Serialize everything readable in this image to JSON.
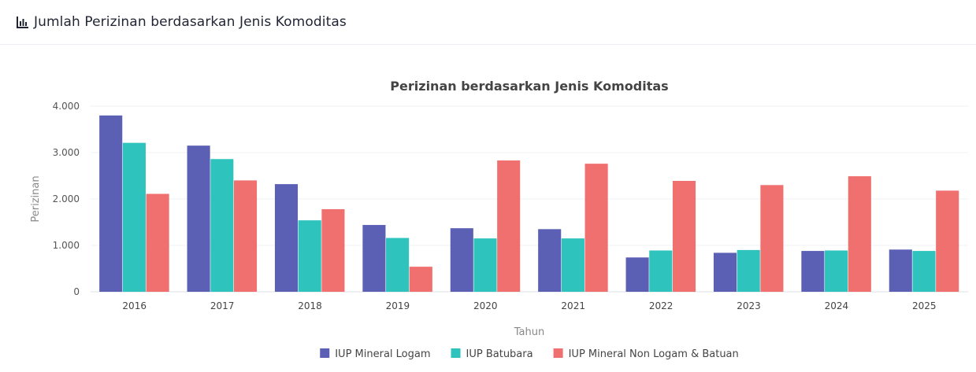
{
  "header": {
    "title": "Jumlah Perizinan berdasarkan Jenis Komoditas",
    "icon": "bar-chart-icon"
  },
  "chart_data": {
    "type": "bar",
    "title": "Perizinan berdasarkan Jenis Komoditas",
    "xlabel": "Tahun",
    "ylabel": "Perizinan",
    "categories": [
      "2016",
      "2017",
      "2018",
      "2019",
      "2020",
      "2021",
      "2022",
      "2023",
      "2024",
      "2025"
    ],
    "ylim": [
      0,
      4000
    ],
    "yticks": [
      0,
      1000,
      2000,
      3000,
      4000
    ],
    "ytick_labels": [
      "0",
      "1.000",
      "2.000",
      "3.000",
      "4.000"
    ],
    "grid": true,
    "legend_position": "bottom-center",
    "series": [
      {
        "name": "IUP Mineral Logam",
        "color": "#5c60b5",
        "values": [
          3800,
          3150,
          2320,
          1440,
          1370,
          1350,
          740,
          840,
          880,
          910
        ]
      },
      {
        "name": "IUP Batubara",
        "color": "#2ec4bd",
        "values": [
          3210,
          2860,
          1540,
          1160,
          1150,
          1150,
          890,
          900,
          890,
          880
        ]
      },
      {
        "name": "IUP Mineral Non Logam & Batuan",
        "color": "#f07070",
        "values": [
          2110,
          2400,
          1780,
          540,
          2830,
          2760,
          2390,
          2300,
          2490,
          2180
        ]
      }
    ]
  }
}
